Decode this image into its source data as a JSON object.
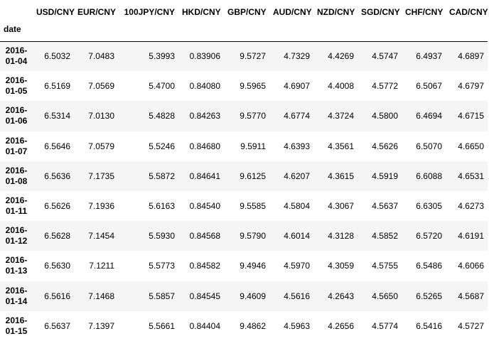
{
  "table": {
    "index_name": "date",
    "columns": [
      "USD/CNY",
      "EUR/CNY",
      "100JPY/CNY",
      "HKD/CNY",
      "GBP/CNY",
      "AUD/CNY",
      "NZD/CNY",
      "SGD/CNY",
      "CHF/CNY",
      "CAD/CNY"
    ],
    "rows": [
      {
        "date": "2016-01-04",
        "values": [
          "6.5032",
          "7.0483",
          "5.3993",
          "0.83906",
          "9.5727",
          "4.7329",
          "4.4269",
          "4.5747",
          "6.4937",
          "4.6897"
        ]
      },
      {
        "date": "2016-01-05",
        "values": [
          "6.5169",
          "7.0569",
          "5.4700",
          "0.84080",
          "9.5965",
          "4.6907",
          "4.4008",
          "4.5772",
          "6.5067",
          "4.6797"
        ]
      },
      {
        "date": "2016-01-06",
        "values": [
          "6.5314",
          "7.0130",
          "5.4828",
          "0.84263",
          "9.5770",
          "4.6774",
          "4.3724",
          "4.5800",
          "6.4694",
          "4.6715"
        ]
      },
      {
        "date": "2016-01-07",
        "values": [
          "6.5646",
          "7.0579",
          "5.5246",
          "0.84680",
          "9.5911",
          "4.6393",
          "4.3561",
          "4.5626",
          "6.5070",
          "4.6650"
        ]
      },
      {
        "date": "2016-01-08",
        "values": [
          "6.5636",
          "7.1735",
          "5.5872",
          "0.84641",
          "9.6125",
          "4.6207",
          "4.3615",
          "4.5919",
          "6.6088",
          "4.6531"
        ]
      },
      {
        "date": "2016-01-11",
        "values": [
          "6.5626",
          "7.1936",
          "5.6163",
          "0.84540",
          "9.5585",
          "4.5804",
          "4.3067",
          "4.5637",
          "6.6305",
          "4.6273"
        ]
      },
      {
        "date": "2016-01-12",
        "values": [
          "6.5628",
          "7.1454",
          "5.5930",
          "0.84568",
          "9.5790",
          "4.6014",
          "4.3128",
          "4.5852",
          "6.5720",
          "4.6191"
        ]
      },
      {
        "date": "2016-01-13",
        "values": [
          "6.5630",
          "7.1211",
          "5.5773",
          "0.84582",
          "9.4946",
          "4.5970",
          "4.3059",
          "4.5755",
          "6.5486",
          "4.6066"
        ]
      },
      {
        "date": "2016-01-14",
        "values": [
          "6.5616",
          "7.1468",
          "5.5857",
          "0.84545",
          "9.4609",
          "4.5616",
          "4.2643",
          "4.5650",
          "6.5265",
          "4.5687"
        ]
      },
      {
        "date": "2016-01-15",
        "values": [
          "6.5637",
          "7.1397",
          "5.5661",
          "0.84404",
          "9.4862",
          "4.5963",
          "4.2656",
          "4.5774",
          "6.5416",
          "4.5727"
        ]
      }
    ]
  }
}
